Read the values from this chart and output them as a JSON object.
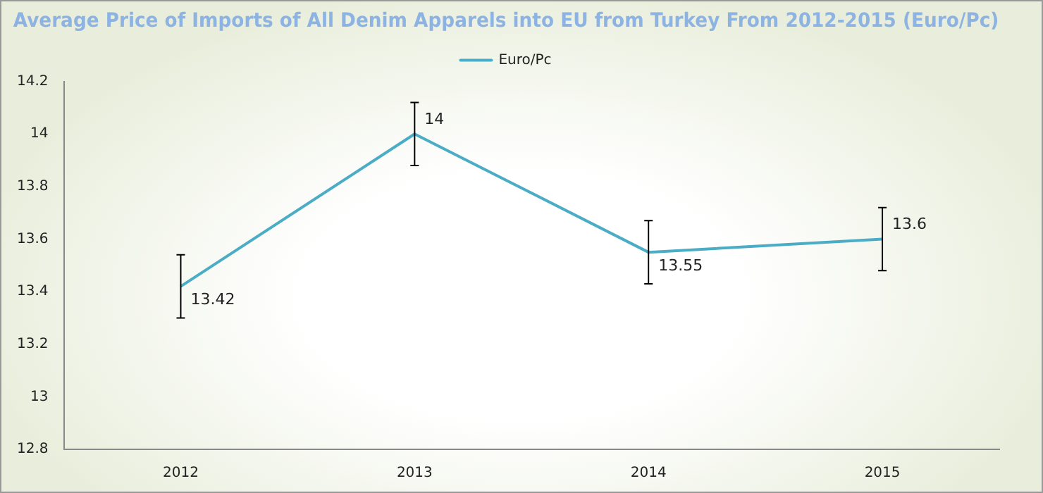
{
  "chart_data": {
    "type": "line",
    "title": "Average Price of Imports of All Denim Apparels into EU from Turkey From 2012-2015 (Euro/Pc)",
    "categories": [
      "2012",
      "2013",
      "2014",
      "2015"
    ],
    "series": [
      {
        "name": "Euro/Pc",
        "color": "#4bacc6",
        "values": [
          13.42,
          14,
          13.55,
          13.6
        ],
        "errors": [
          0.12,
          0.12,
          0.12,
          0.12
        ]
      }
    ],
    "ylim": [
      12.8,
      14.2
    ],
    "yticks": [
      12.8,
      13,
      13.2,
      13.4,
      13.6,
      13.8,
      14,
      14.2
    ],
    "grid": false,
    "legend": "top",
    "marker": "none",
    "line_style": "solid",
    "data_labels": true
  }
}
